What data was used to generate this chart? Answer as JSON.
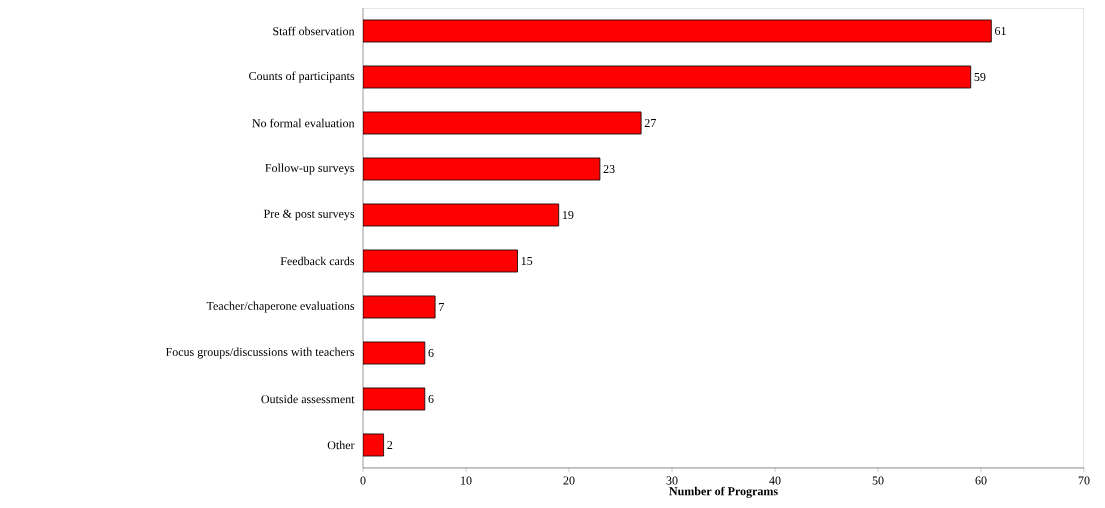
{
  "chart_data": {
    "type": "bar",
    "orientation": "horizontal",
    "xlabel": "Number of Programs",
    "categories": [
      "Staff observation",
      "Counts of participants",
      "No formal evaluation",
      "Follow-up surveys",
      "Pre & post surveys",
      "Feedback cards",
      "Teacher/chaperone evaluations",
      "Focus groups/discussions with teachers",
      "Outside assessment",
      "Other"
    ],
    "values": [
      61,
      59,
      27,
      23,
      19,
      15,
      7,
      6,
      6,
      2
    ],
    "color": "#ff0000",
    "data_labels": true,
    "grid": false,
    "xlim": [
      0,
      70
    ],
    "xticks": [
      0,
      10,
      20,
      30,
      40,
      50,
      60,
      70
    ]
  }
}
